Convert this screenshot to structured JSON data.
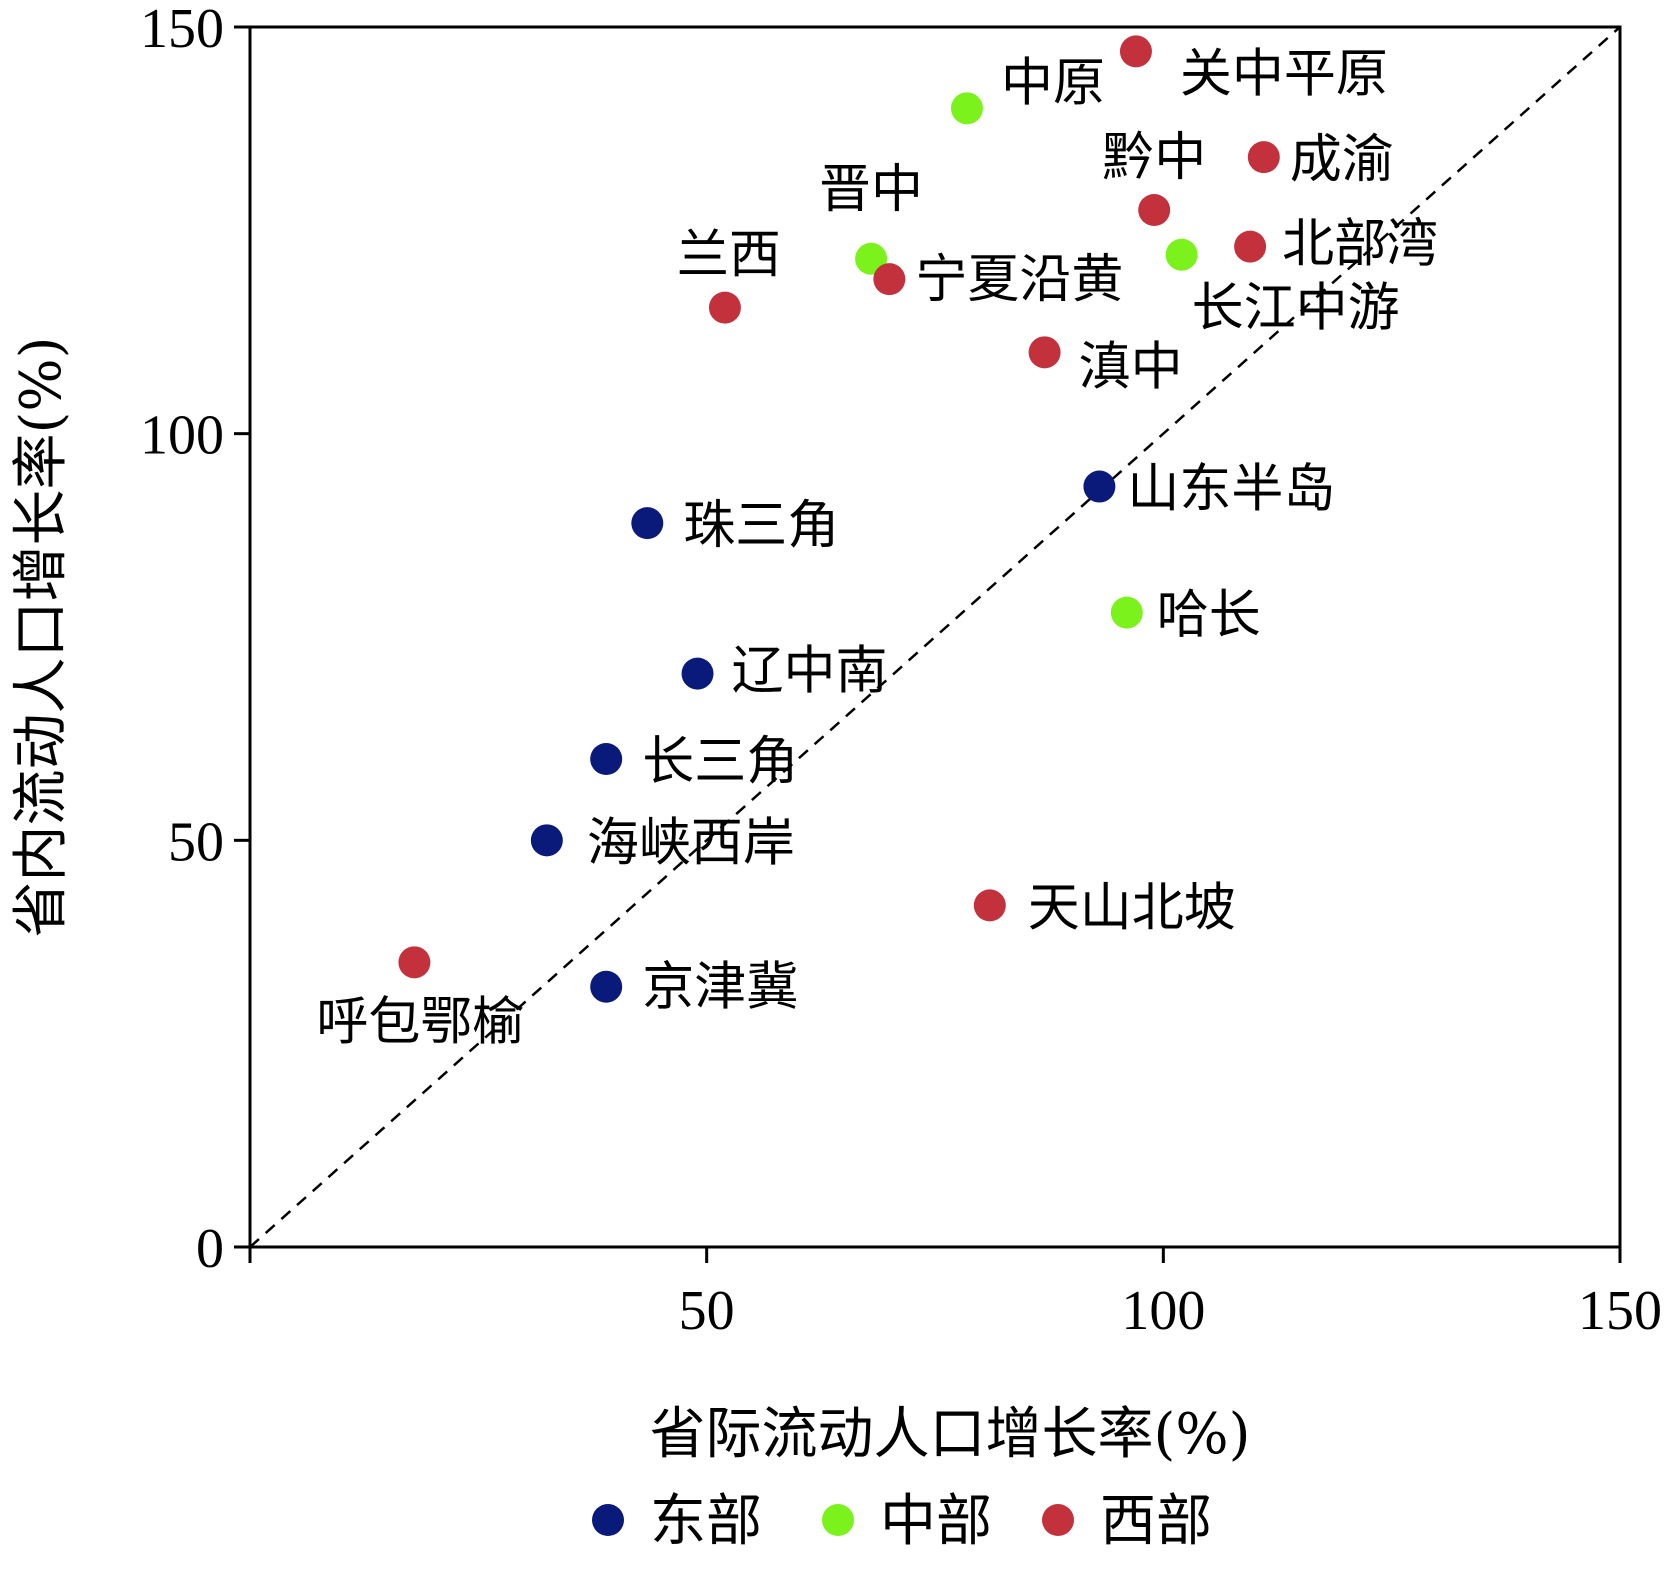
{
  "chart_data": {
    "type": "scatter",
    "xlabel": "省际流动人口增长率(%)",
    "ylabel": "省内流动人口增长率(%)",
    "xlim": [
      0,
      150
    ],
    "ylim": [
      0,
      150
    ],
    "x_ticks": [
      "50",
      "100",
      "150"
    ],
    "y_ticks": [
      "0",
      "50",
      "100",
      "150"
    ],
    "reference_line": "y = x (dashed)",
    "legend_position": "bottom",
    "series": [
      {
        "name": "东部",
        "color": "#0a1a7a",
        "points": [
          {
            "label": "山东半岛",
            "x": 93,
            "y": 93.5
          },
          {
            "label": "珠三角",
            "x": 43.5,
            "y": 89
          },
          {
            "label": "辽中南",
            "x": 49,
            "y": 70.5
          },
          {
            "label": "长三角",
            "x": 39,
            "y": 60
          },
          {
            "label": "海峡西岸",
            "x": 32.5,
            "y": 50
          },
          {
            "label": "京津冀",
            "x": 39,
            "y": 32
          }
        ]
      },
      {
        "name": "中部",
        "color": "#7cf21c",
        "points": [
          {
            "label": "中原",
            "x": 78.5,
            "y": 140
          },
          {
            "label": "晋中",
            "x": 68,
            "y": 121.5
          },
          {
            "label": "长江中游",
            "x": 102,
            "y": 122
          },
          {
            "label": "哈长",
            "x": 96,
            "y": 78
          }
        ]
      },
      {
        "name": "西部",
        "color": "#c3323c",
        "points": [
          {
            "label": "关中平原",
            "x": 97,
            "y": 147
          },
          {
            "label": "成渝",
            "x": 111,
            "y": 134
          },
          {
            "label": "黔中",
            "x": 99,
            "y": 127.5
          },
          {
            "label": "北部湾",
            "x": 109.5,
            "y": 123
          },
          {
            "label": "宁夏沿黄",
            "x": 70,
            "y": 119
          },
          {
            "label": "兰西",
            "x": 52,
            "y": 115.5
          },
          {
            "label": "滇中",
            "x": 87,
            "y": 110
          },
          {
            "label": "天山北坡",
            "x": 81,
            "y": 42
          },
          {
            "label": "呼包鄂榆",
            "x": 18,
            "y": 35
          }
        ]
      }
    ]
  }
}
